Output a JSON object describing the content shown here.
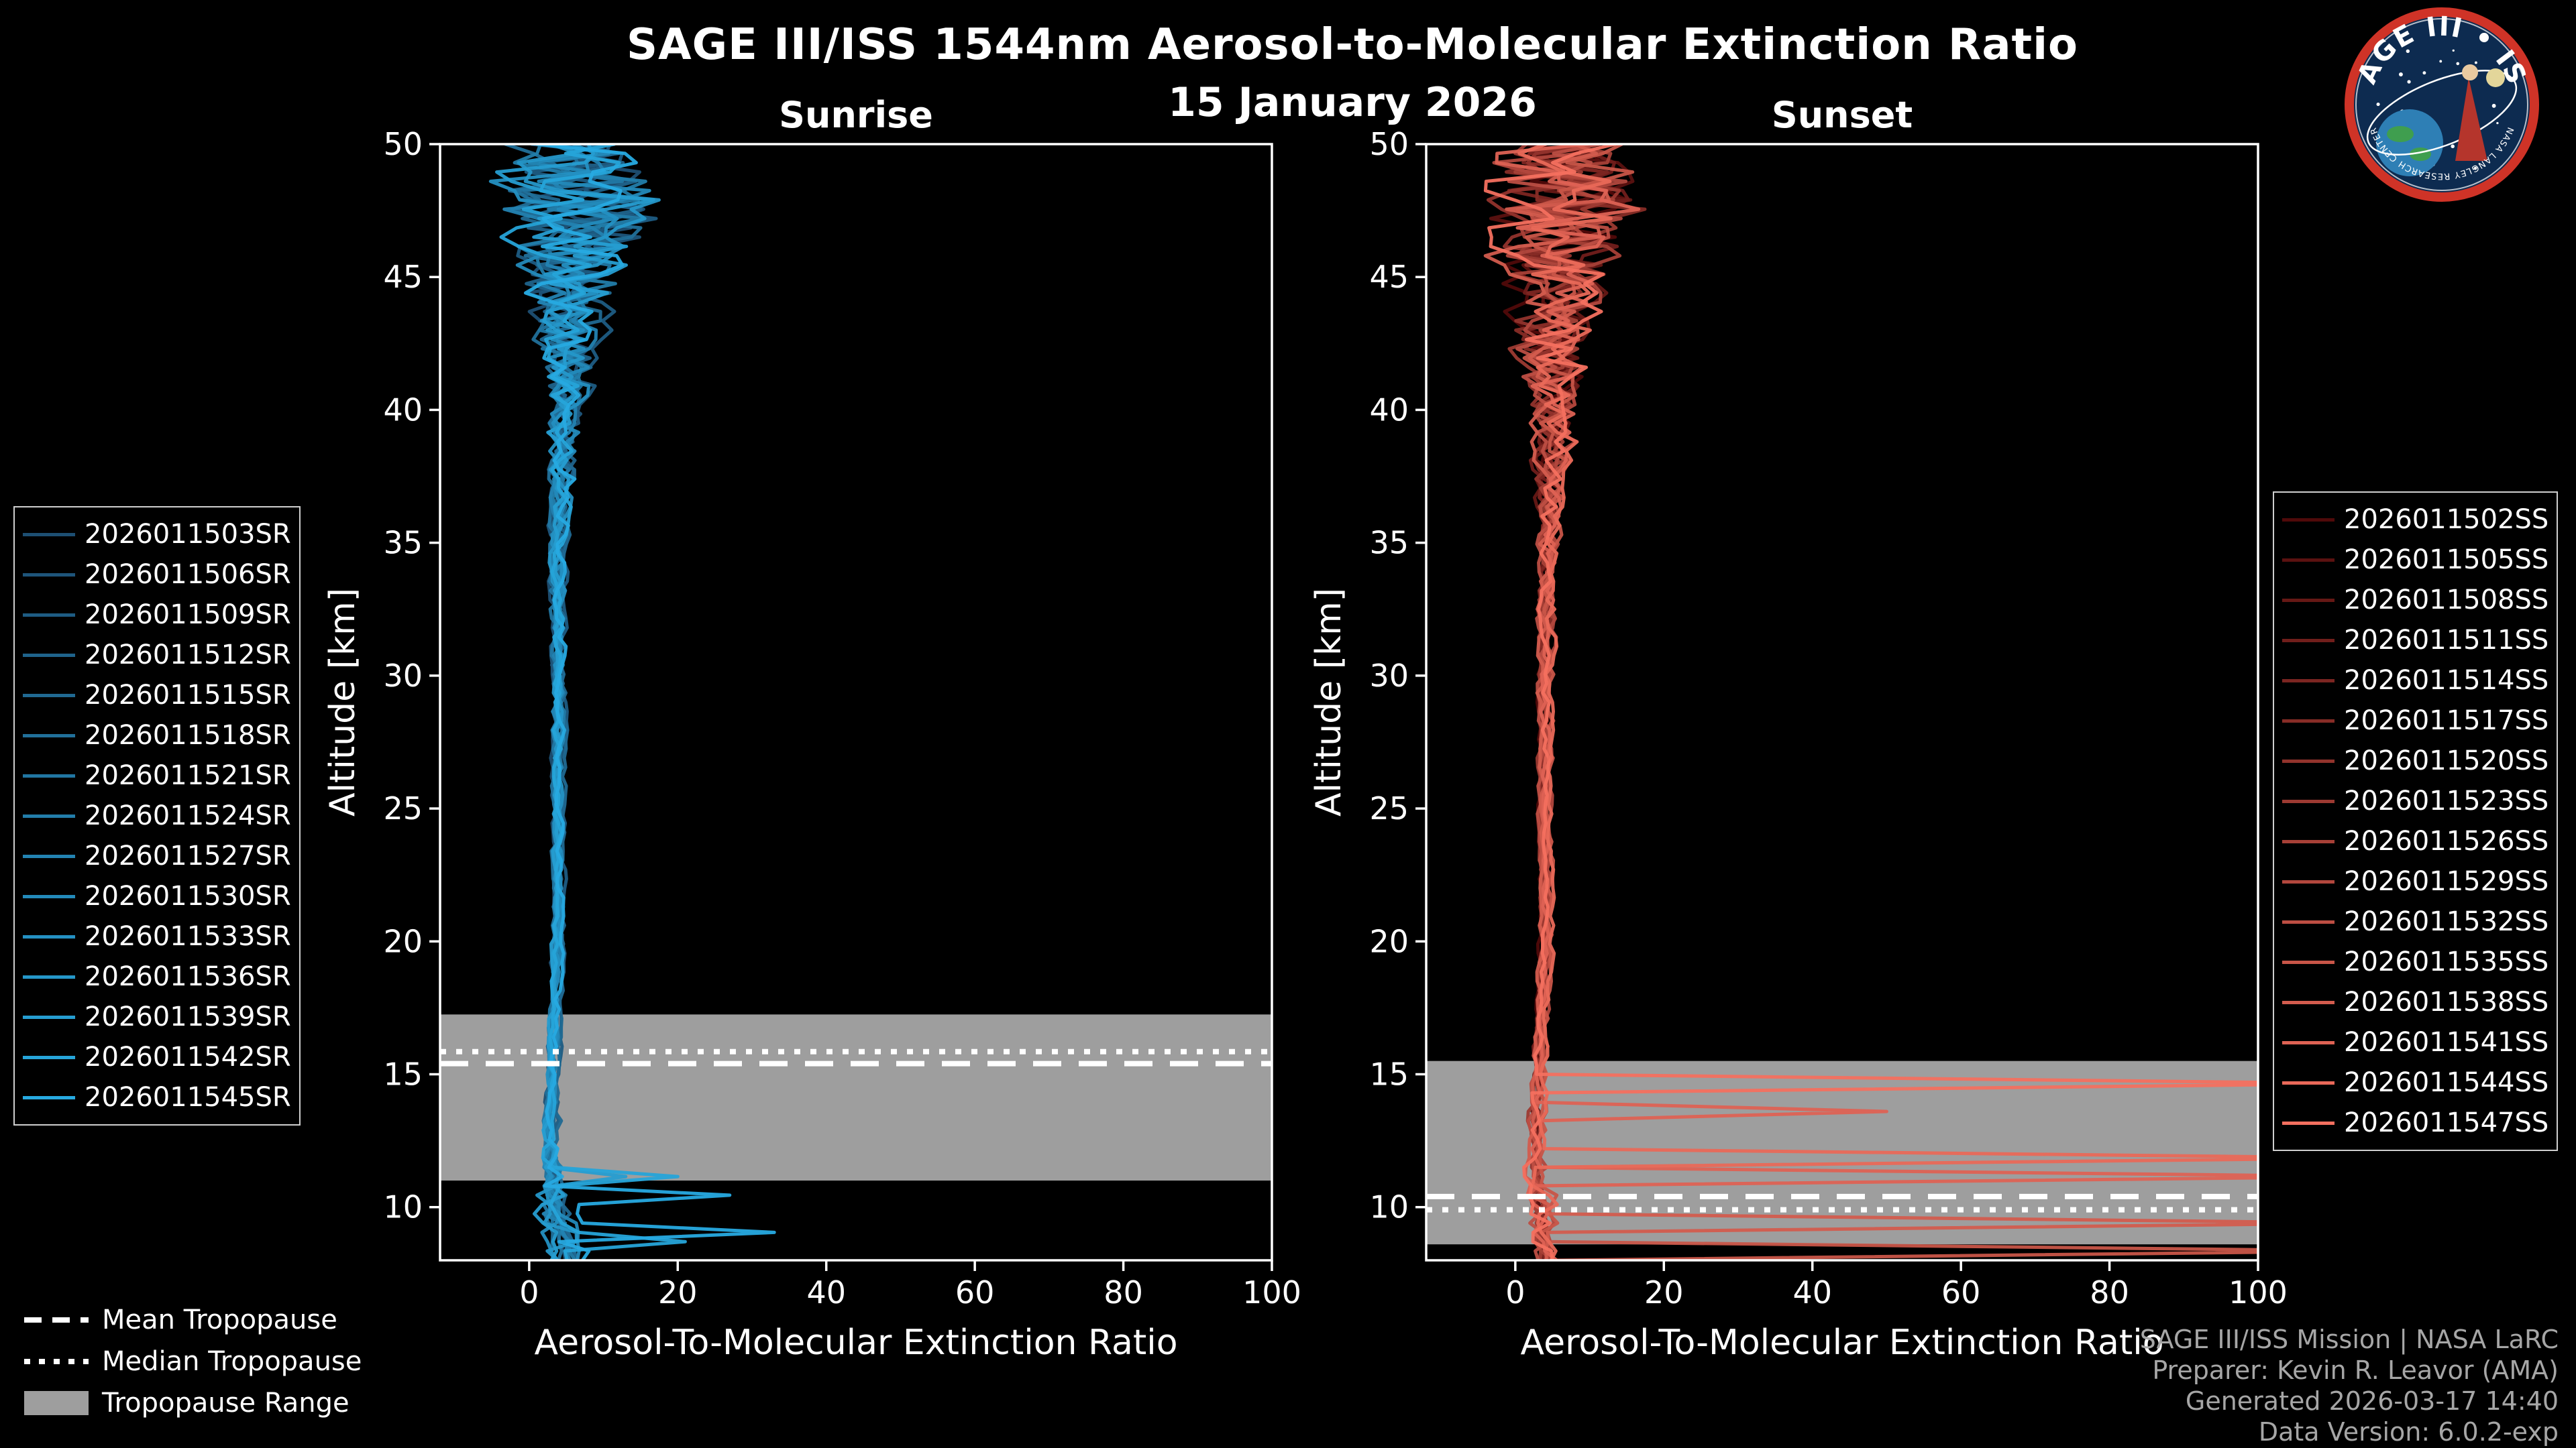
{
  "header": {
    "title": "SAGE III/ISS 1544nm Aerosol-to-Molecular Extinction Ratio",
    "date": "15 January 2026"
  },
  "logo": {
    "title_text": "SAGE III • ISS",
    "ring_text": "NASA LANGLEY RESEARCH CENTER",
    "ring_color": "#cf3327",
    "bg_color": "#0d2b50"
  },
  "tropopause_legend": {
    "mean_label": "Mean Tropopause",
    "median_label": "Median Tropopause",
    "range_label": "Tropopause Range",
    "range_color": "#9e9e9e"
  },
  "credits": {
    "line1": "SAGE III/ISS Mission | NASA LaRC",
    "line2": "Preparer: Kevin R. Leavor (AMA)",
    "line3": "Generated 2026-03-17 14:40",
    "line4": "Data Version: 6.0.2-exp"
  },
  "chart_data": [
    {
      "type": "line",
      "title": "Sunrise",
      "xlabel": "Aerosol-To-Molecular Extinction Ratio",
      "ylabel": "Altitude [km]",
      "xlim": [
        -12,
        100
      ],
      "ylim": [
        8,
        50
      ],
      "xticks": [
        0,
        20,
        40,
        60,
        80,
        100
      ],
      "yticks": [
        10,
        15,
        20,
        25,
        30,
        35,
        40,
        45,
        50
      ],
      "tropopause": {
        "mean": 15.4,
        "median": 15.85,
        "range": [
          11.0,
          17.25
        ]
      },
      "envelope": {
        "altitudes": [
          8,
          9,
          10,
          11,
          12,
          14,
          17,
          20,
          25,
          30,
          35,
          37,
          40,
          42,
          44,
          46,
          48,
          50
        ],
        "mean": [
          5,
          5,
          4,
          3.5,
          3,
          3,
          3.5,
          4,
          4,
          4,
          4,
          4.5,
          5,
          5,
          5.5,
          6,
          7,
          5
        ],
        "noise": [
          4,
          5,
          4.5,
          3,
          1.5,
          0.8,
          0.6,
          0.7,
          0.7,
          0.9,
          1.3,
          1.8,
          3,
          5,
          7,
          11,
          14,
          11
        ]
      },
      "spikes": [
        [
          14,
          9.2,
          33
        ],
        [
          14,
          10.6,
          27
        ],
        [
          13,
          8.8,
          21
        ],
        [
          13,
          11.3,
          20
        ],
        [
          12,
          11.0,
          13
        ]
      ],
      "series": [
        {
          "name": "2026011503SR",
          "color": "#1d4f73"
        },
        {
          "name": "2026011506SR",
          "color": "#1e557b"
        },
        {
          "name": "2026011509SR",
          "color": "#1e5c83"
        },
        {
          "name": "2026011512SR",
          "color": "#1f638b"
        },
        {
          "name": "2026011515SR",
          "color": "#206992"
        },
        {
          "name": "2026011518SR",
          "color": "#21709a"
        },
        {
          "name": "2026011521SR",
          "color": "#2176a2"
        },
        {
          "name": "2026011524SR",
          "color": "#227daa"
        },
        {
          "name": "2026011527SR",
          "color": "#2383b2"
        },
        {
          "name": "2026011530SR",
          "color": "#238aba"
        },
        {
          "name": "2026011533SR",
          "color": "#2490c2"
        },
        {
          "name": "2026011536SR",
          "color": "#2597c9"
        },
        {
          "name": "2026011539SR",
          "color": "#269dd1"
        },
        {
          "name": "2026011542SR",
          "color": "#26a4d9"
        },
        {
          "name": "2026011545SR",
          "color": "#27aae1"
        }
      ]
    },
    {
      "type": "line",
      "title": "Sunset",
      "xlabel": "Aerosol-To-Molecular Extinction Ratio",
      "ylabel": "Altitude [km]",
      "xlim": [
        -12,
        100
      ],
      "ylim": [
        8,
        50
      ],
      "xticks": [
        0,
        20,
        40,
        60,
        80,
        100
      ],
      "yticks": [
        10,
        15,
        20,
        25,
        30,
        35,
        40,
        45,
        50
      ],
      "tropopause": {
        "mean": 10.4,
        "median": 9.9,
        "range": [
          8.6,
          15.5
        ]
      },
      "envelope": {
        "altitudes": [
          8,
          9,
          10,
          11,
          12,
          14,
          17,
          20,
          25,
          30,
          35,
          37,
          40,
          42,
          44,
          46,
          48,
          50
        ],
        "mean": [
          4,
          4,
          3.5,
          3,
          3,
          3,
          3.5,
          4,
          4,
          4,
          4.5,
          5,
          5,
          5,
          5.5,
          6,
          7,
          5
        ],
        "noise": [
          2.5,
          3,
          3,
          2.5,
          1.5,
          0.8,
          0.6,
          0.7,
          0.7,
          0.9,
          1.5,
          2.5,
          4,
          6,
          8,
          11,
          14,
          11
        ]
      },
      "spikes": [
        [
          15,
          14.6,
          115
        ],
        [
          14,
          12.0,
          115
        ],
        [
          13,
          11.3,
          115
        ],
        [
          12,
          9.5,
          115
        ],
        [
          11,
          8.5,
          115
        ],
        [
          13,
          13.5,
          50
        ]
      ],
      "series": [
        {
          "name": "2026011502SS",
          "color": "#500a0a"
        },
        {
          "name": "2026011505SS",
          "color": "#5b1110"
        },
        {
          "name": "2026011508SS",
          "color": "#661815"
        },
        {
          "name": "2026011511SS",
          "color": "#711e1b"
        },
        {
          "name": "2026011514SS",
          "color": "#7c2521"
        },
        {
          "name": "2026011517SS",
          "color": "#872c26"
        },
        {
          "name": "2026011520SS",
          "color": "#92332c"
        },
        {
          "name": "2026011523SS",
          "color": "#9d3a32"
        },
        {
          "name": "2026011526SS",
          "color": "#a74037"
        },
        {
          "name": "2026011529SS",
          "color": "#b2473d"
        },
        {
          "name": "2026011532SS",
          "color": "#bd4e43"
        },
        {
          "name": "2026011535SS",
          "color": "#c85548"
        },
        {
          "name": "2026011538SS",
          "color": "#d35c4e"
        },
        {
          "name": "2026011541SS",
          "color": "#de6254"
        },
        {
          "name": "2026011544SS",
          "color": "#e96959"
        },
        {
          "name": "2026011547SS",
          "color": "#f4705f"
        }
      ]
    }
  ]
}
